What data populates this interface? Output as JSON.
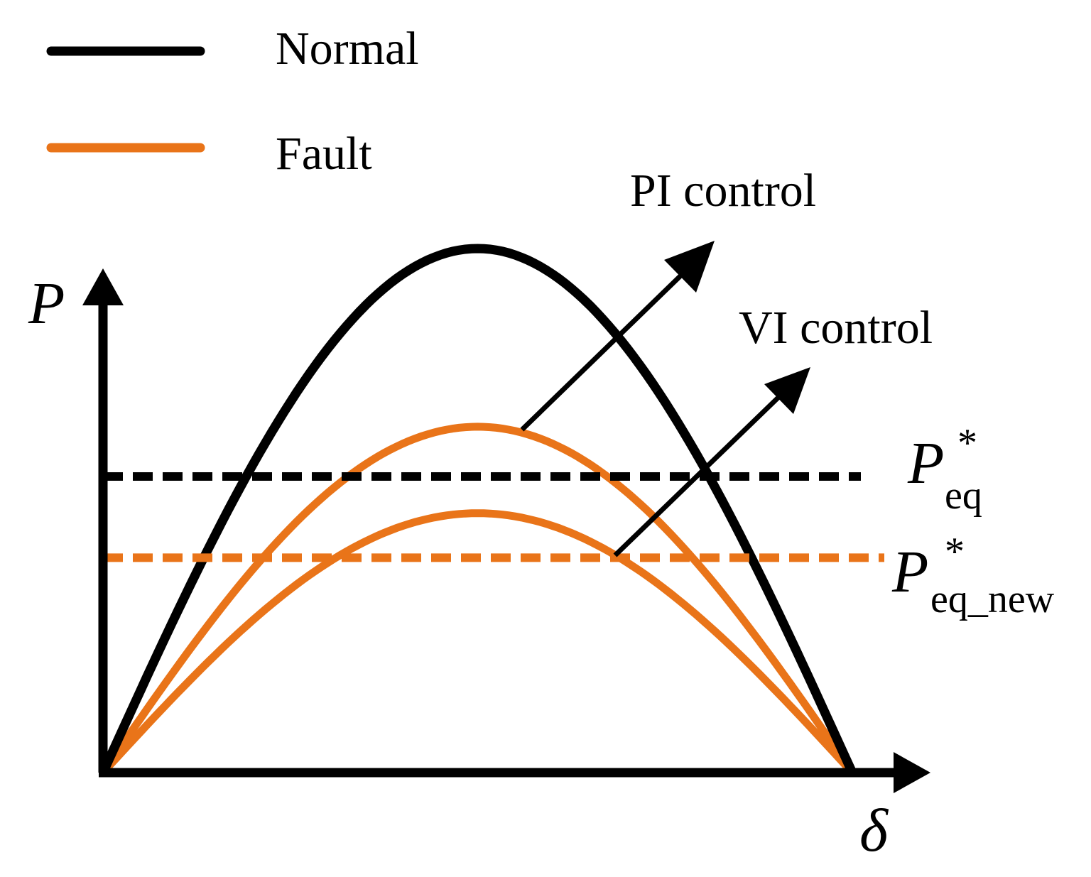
{
  "legend": {
    "items": [
      {
        "label": "Normal",
        "color": "#000000"
      },
      {
        "label": "Fault",
        "color": "#E97419"
      }
    ]
  },
  "axes": {
    "y_label": "P",
    "x_label": "δ"
  },
  "annotations": {
    "pi_control": "PI control",
    "vi_control": "VI control"
  },
  "reference_lines": {
    "peq": {
      "symbol": "P",
      "superscript": "*",
      "subscript": "eq",
      "color": "#000000",
      "style": "dashed"
    },
    "peq_new": {
      "symbol": "P",
      "superscript": "*",
      "subscript": "eq_new",
      "color": "#E97419",
      "style": "dashed"
    }
  },
  "curves": {
    "normal_peak": 1.0,
    "fault_pi_peak": 0.66,
    "fault_vi_peak": 0.495,
    "peq_level": 0.565,
    "peq_new_level": 0.41
  },
  "colors": {
    "normal": "#000000",
    "fault": "#E97419"
  }
}
